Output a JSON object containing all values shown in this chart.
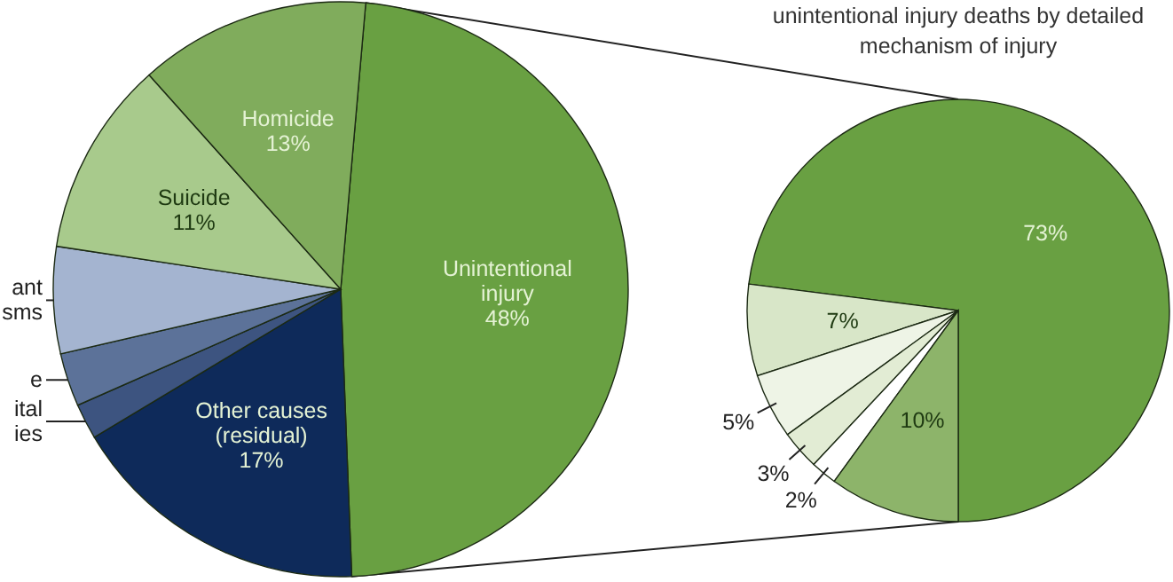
{
  "chart_data": [
    {
      "type": "pie",
      "categories": [
        "Unintentional\ninjury",
        "Other causes\n(residual)",
        "ital\nies",
        "e",
        "ant\nsms",
        "Suicide",
        "Homicide"
      ],
      "values": [
        48,
        17,
        2,
        3,
        6,
        11,
        13
      ],
      "colors": [
        "#69a042",
        "#0e2a5a",
        "#3d5480",
        "#5c7299",
        "#a4b4d0",
        "#a8ca8c",
        "#80ac5c"
      ],
      "value_labels": [
        "48%",
        "17%",
        null,
        null,
        null,
        "11%",
        "13%"
      ]
    },
    {
      "type": "pie",
      "title": "unintentional injury deaths by detailed mechanism of injury",
      "categories": [
        null,
        null,
        null,
        null,
        null,
        null
      ],
      "values": [
        73,
        7,
        5,
        3,
        2,
        10
      ],
      "colors": [
        "#69a042",
        "#d8e6c8",
        "#eef4e6",
        "#e2ecd4",
        "#ffffff",
        "#8db46a"
      ],
      "value_labels": [
        "73%",
        "7%",
        "5%",
        "3%",
        "2%",
        "10%"
      ]
    }
  ]
}
